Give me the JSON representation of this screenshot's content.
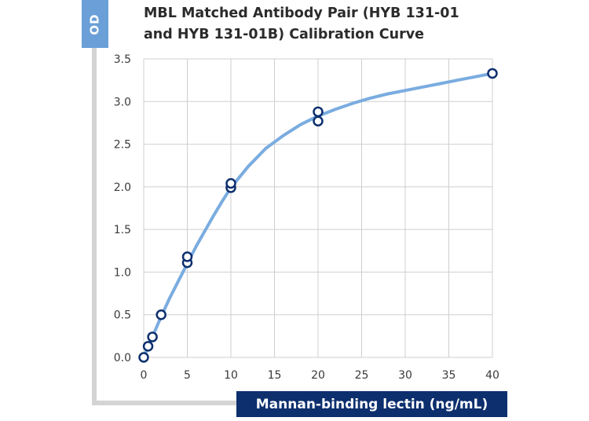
{
  "chart_data": {
    "type": "scatter",
    "title_lines": [
      "MBL Matched Antibody Pair (HYB 131-01",
      "and HYB 131-01B) Calibration Curve"
    ],
    "xlabel": "Mannan-binding lectin (ng/mL)",
    "ylabel": "OD",
    "xlim": [
      0,
      40
    ],
    "ylim": [
      0,
      3.5
    ],
    "x_ticks": [
      "0",
      "5",
      "10",
      "15",
      "20",
      "25",
      "30",
      "35",
      "40"
    ],
    "y_ticks": [
      "0.0",
      "0.5",
      "1.0",
      "1.5",
      "2.0",
      "2.5",
      "3.0",
      "3.5"
    ],
    "grid": true,
    "points": {
      "x": [
        0,
        0.5,
        1,
        2,
        5,
        5,
        10,
        10,
        20,
        20,
        40
      ],
      "y": [
        0.0,
        0.13,
        0.24,
        0.5,
        1.11,
        1.18,
        1.99,
        2.04,
        2.77,
        2.88,
        3.33
      ]
    },
    "fit_curve": {
      "x": [
        0,
        1,
        2,
        3,
        4,
        5,
        6,
        7,
        8,
        9,
        10,
        12,
        14,
        16,
        18,
        20,
        22,
        24,
        26,
        28,
        30,
        32,
        34,
        36,
        38,
        40
      ],
      "y": [
        0.0,
        0.24,
        0.48,
        0.7,
        0.9,
        1.1,
        1.3,
        1.48,
        1.66,
        1.83,
        1.99,
        2.24,
        2.45,
        2.6,
        2.73,
        2.83,
        2.91,
        2.98,
        3.04,
        3.09,
        3.13,
        3.17,
        3.21,
        3.25,
        3.29,
        3.33
      ]
    },
    "colors": {
      "curve": "#7aace0",
      "marker": "#0d2f6e",
      "grid": "#cfcfcf",
      "od_tab": "#6a9fd8",
      "xlabel_box": "#0d2f6e"
    }
  }
}
